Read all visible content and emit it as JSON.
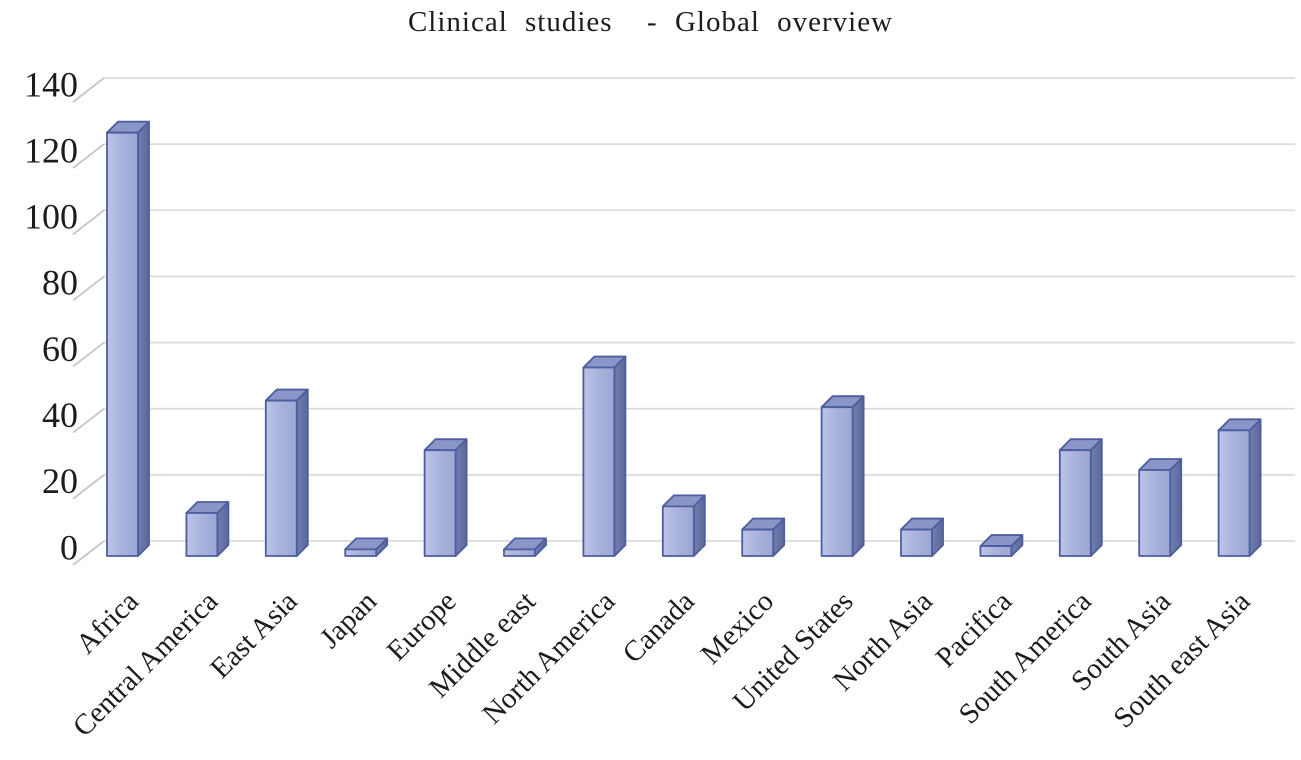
{
  "title": "Clinical studies  - Global overview",
  "chart_data": {
    "type": "bar",
    "style": "3d-column",
    "title": "Clinical studies - Global overview",
    "categories": [
      "Africa",
      "Central America",
      "East Asia",
      "Japan",
      "Europe",
      "Middle east",
      "North America",
      "Canada",
      "Mexico",
      "United States",
      "North Asia",
      "Pacifica",
      "South America",
      "South Asia",
      "South east Asia"
    ],
    "values": [
      128,
      13,
      47,
      2,
      32,
      2,
      57,
      15,
      8,
      45,
      8,
      3,
      32,
      26,
      38
    ],
    "xlabel": "",
    "ylabel": "",
    "ylim": [
      0,
      140
    ],
    "yticks": [
      0,
      20,
      40,
      60,
      80,
      100,
      120,
      140
    ],
    "grid": true,
    "legend": false,
    "x_label_rotation_deg": -45,
    "colors": {
      "bar_front_light": "#bcc4e6",
      "bar_front": "#aab4dd",
      "bar_front_dark": "#9aa6d3",
      "bar_top": "#8визна94c5",
      "bar_top_fill": "#8a96c7",
      "bar_side_light": "#727eb0",
      "bar_side_dark": "#5d6899",
      "bar_border": "#4d5d9f",
      "gridline": "#dcdcdc",
      "axis_tick": "#c6c6c6",
      "text": "#1c1c1c",
      "background": "#ffffff"
    }
  }
}
